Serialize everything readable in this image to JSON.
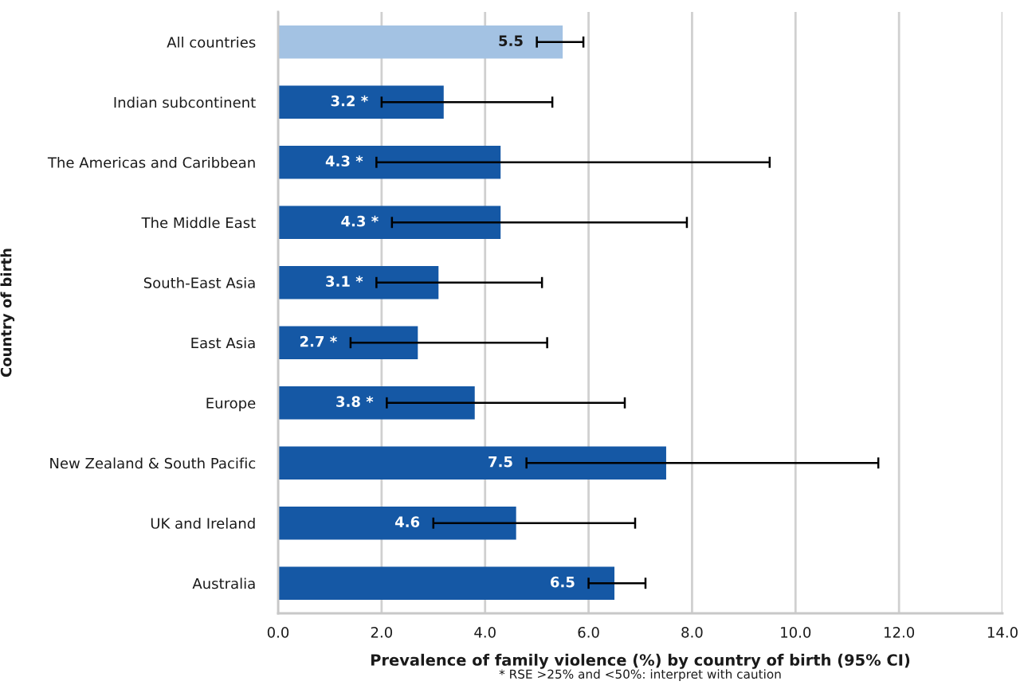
{
  "chart_data": {
    "type": "bar",
    "orientation": "horizontal",
    "categories": [
      "All countries",
      "Indian subcontinent",
      "The Americas and Caribbean",
      "The Middle East",
      "South-East Asia",
      "East Asia",
      "Europe",
      "New Zealand & South Pacific",
      "UK and Ireland",
      "Australia"
    ],
    "values": [
      5.5,
      3.2,
      4.3,
      4.3,
      3.1,
      2.7,
      3.8,
      7.5,
      4.6,
      6.5
    ],
    "colors": [
      "#a3c2e3",
      "#1558a5",
      "#1558a5",
      "#1558a5",
      "#1558a5",
      "#1558a5",
      "#1558a5",
      "#1558a5",
      "#1558a5",
      "#1558a5"
    ],
    "errors": [
      [
        5.0,
        5.9
      ],
      [
        2.0,
        5.3
      ],
      [
        1.9,
        9.5
      ],
      [
        2.2,
        7.9
      ],
      [
        1.9,
        5.1
      ],
      [
        1.4,
        5.2
      ],
      [
        2.1,
        6.7
      ],
      [
        4.8,
        11.6
      ],
      [
        3.0,
        6.9
      ],
      [
        6.0,
        7.1
      ]
    ],
    "value_labels": [
      "5.5",
      "3.2 *",
      "4.3 *",
      "4.3 *",
      "3.1 *",
      "2.7 *",
      "3.8 *",
      "7.5",
      "4.6",
      "6.5"
    ],
    "xlabel": "Prevalence of family violence (%) by country of birth (95% CI)",
    "ylabel": "Country of birth",
    "xlim": [
      0,
      14
    ],
    "xticks": [
      {
        "value": 0,
        "label": "0.0"
      },
      {
        "value": 2,
        "label": "2.0"
      },
      {
        "value": 4,
        "label": "4.0"
      },
      {
        "value": 6,
        "label": "6.0"
      },
      {
        "value": 8,
        "label": "8.0"
      },
      {
        "value": 10,
        "label": "10.0"
      },
      {
        "value": 12,
        "label": "12.0"
      },
      {
        "value": 14,
        "label": "14.0"
      }
    ],
    "grid": "x",
    "annotations": [
      "* RSE >25% and <50%: interpret with caution"
    ]
  }
}
